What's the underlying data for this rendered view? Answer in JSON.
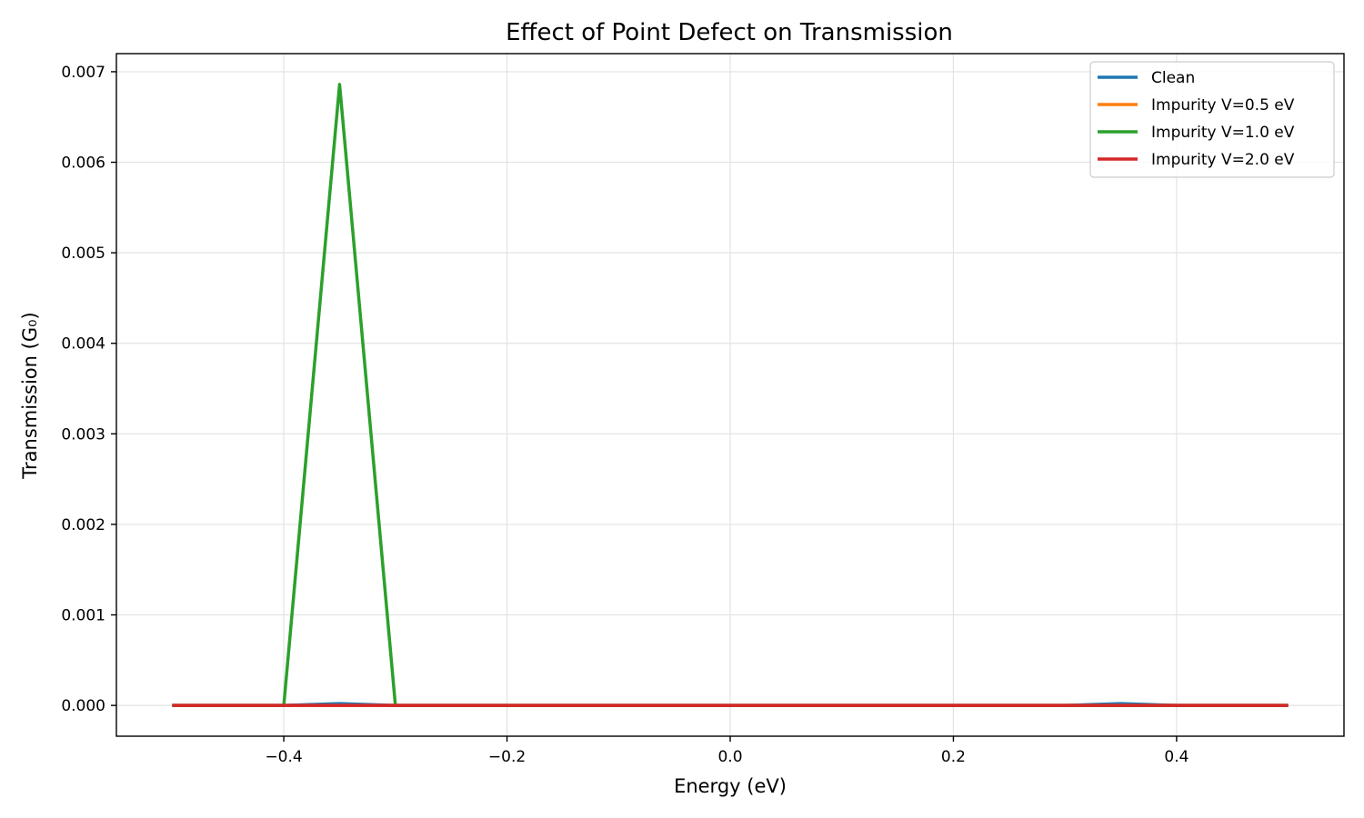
{
  "chart_data": {
    "type": "line",
    "title": "Effect of Point Defect on Transmission",
    "xlabel": "Energy (eV)",
    "ylabel": "Transmission (G₀)",
    "xlim": [
      -0.55,
      0.55
    ],
    "ylim": [
      -0.00034,
      0.0072
    ],
    "xticks": [
      -0.4,
      -0.2,
      0.0,
      0.2,
      0.4
    ],
    "xtick_labels": [
      "−0.4",
      "−0.2",
      "0.0",
      "0.2",
      "0.4"
    ],
    "yticks": [
      0.0,
      0.001,
      0.002,
      0.003,
      0.004,
      0.005,
      0.006,
      0.007
    ],
    "ytick_labels": [
      "0.000",
      "0.001",
      "0.002",
      "0.003",
      "0.004",
      "0.005",
      "0.006",
      "0.007"
    ],
    "grid": true,
    "legend_position": "top-right",
    "x": [
      -0.5,
      -0.45,
      -0.4,
      -0.35,
      -0.3,
      -0.25,
      -0.2,
      -0.15,
      -0.1,
      -0.05,
      0.0,
      0.05,
      0.1,
      0.15,
      0.2,
      0.25,
      0.3,
      0.35,
      0.4,
      0.45,
      0.5
    ],
    "series": [
      {
        "name": "Clean",
        "color": "#1f77b4",
        "values": [
          0,
          0,
          0,
          2e-05,
          0,
          0,
          0,
          0,
          0,
          0,
          0,
          0,
          0,
          0,
          0,
          0,
          0,
          2e-05,
          0,
          0,
          0
        ]
      },
      {
        "name": "Impurity V=0.5 eV",
        "color": "#ff7f0e",
        "values": [
          0,
          0,
          0,
          0,
          0,
          0,
          0,
          0,
          0,
          0,
          0,
          0,
          0,
          0,
          0,
          0,
          0,
          0,
          0,
          0,
          0
        ]
      },
      {
        "name": "Impurity V=1.0 eV",
        "color": "#2ca02c",
        "values": [
          0,
          0,
          0,
          0.00686,
          0,
          0,
          0,
          0,
          0,
          0,
          0,
          0,
          0,
          0,
          0,
          0,
          0,
          0,
          0,
          0,
          0
        ]
      },
      {
        "name": "Impurity V=2.0 eV",
        "color": "#d62728",
        "values": [
          0,
          0,
          0,
          0,
          0,
          0,
          0,
          0,
          0,
          0,
          0,
          0,
          0,
          0,
          0,
          0,
          0,
          0,
          0,
          0,
          0
        ]
      }
    ]
  }
}
